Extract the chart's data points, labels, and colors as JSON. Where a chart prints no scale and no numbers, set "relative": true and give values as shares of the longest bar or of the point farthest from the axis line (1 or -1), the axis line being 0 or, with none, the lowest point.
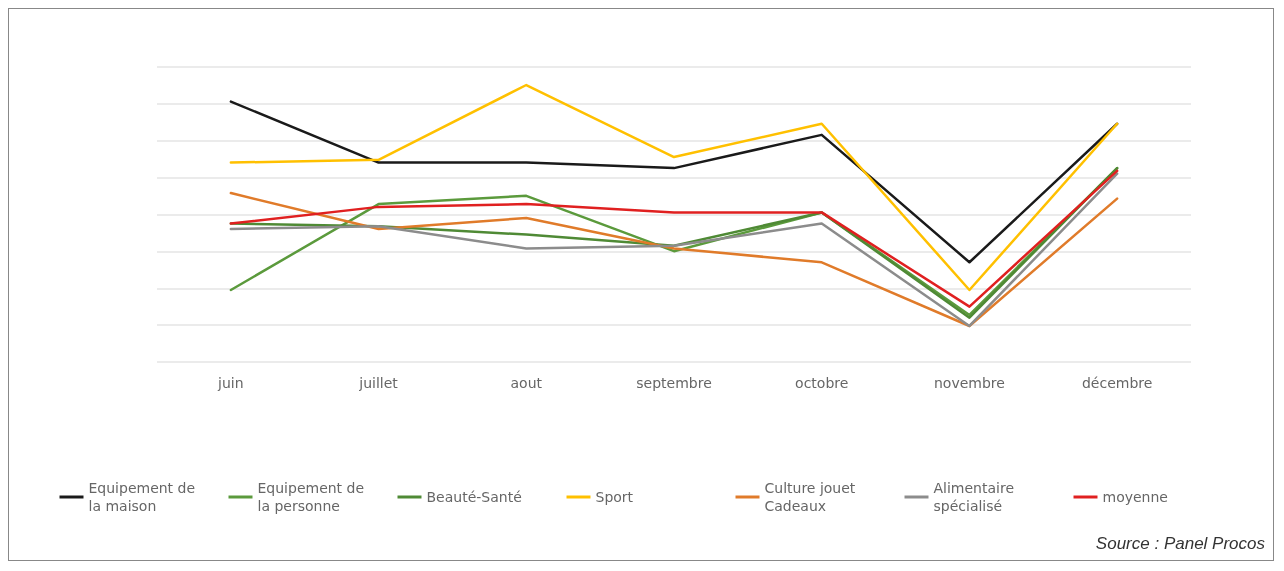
{
  "chart_data": {
    "type": "line",
    "relative": true,
    "grid": "y",
    "legend": "bottom",
    "marker": "none",
    "line_style": "solid",
    "categories": [
      "juin",
      "juillet",
      "aout",
      "septembre",
      "octobre",
      "novembre",
      "décembre"
    ],
    "series": [
      {
        "name": "Equipement de la maison",
        "color": "#1a1a1a",
        "values": [
          0.94,
          0.72,
          0.72,
          0.7,
          0.82,
          0.36,
          0.86
        ]
      },
      {
        "name": "Equipement de la personne",
        "color": "#5b9a3c",
        "values": [
          0.26,
          0.57,
          0.6,
          0.4,
          0.54,
          0.17,
          0.7
        ]
      },
      {
        "name": "Beauté-Santé",
        "color": "#4f8a35",
        "values": [
          0.5,
          0.49,
          0.46,
          0.42,
          0.54,
          0.16,
          0.7
        ]
      },
      {
        "name": "Sport",
        "color": "#ffc000",
        "values": [
          0.72,
          0.73,
          1,
          0.74,
          0.86,
          0.26,
          0.86
        ]
      },
      {
        "name": "Culture jouet Cadeaux",
        "color": "#e07b2a",
        "values": [
          0.61,
          0.48,
          0.52,
          0.41,
          0.36,
          0.13,
          0.59
        ]
      },
      {
        "name": "Alimentaire spécialisé",
        "color": "#8c8c8c",
        "values": [
          0.48,
          0.49,
          0.41,
          0.42,
          0.5,
          0.13,
          0.68
        ]
      },
      {
        "name": "moyenne",
        "color": "#e02020",
        "values": [
          0.5,
          0.56,
          0.57,
          0.54,
          0.54,
          0.2,
          0.69
        ]
      }
    ],
    "annotations": [
      "Source : Panel Procos"
    ]
  }
}
